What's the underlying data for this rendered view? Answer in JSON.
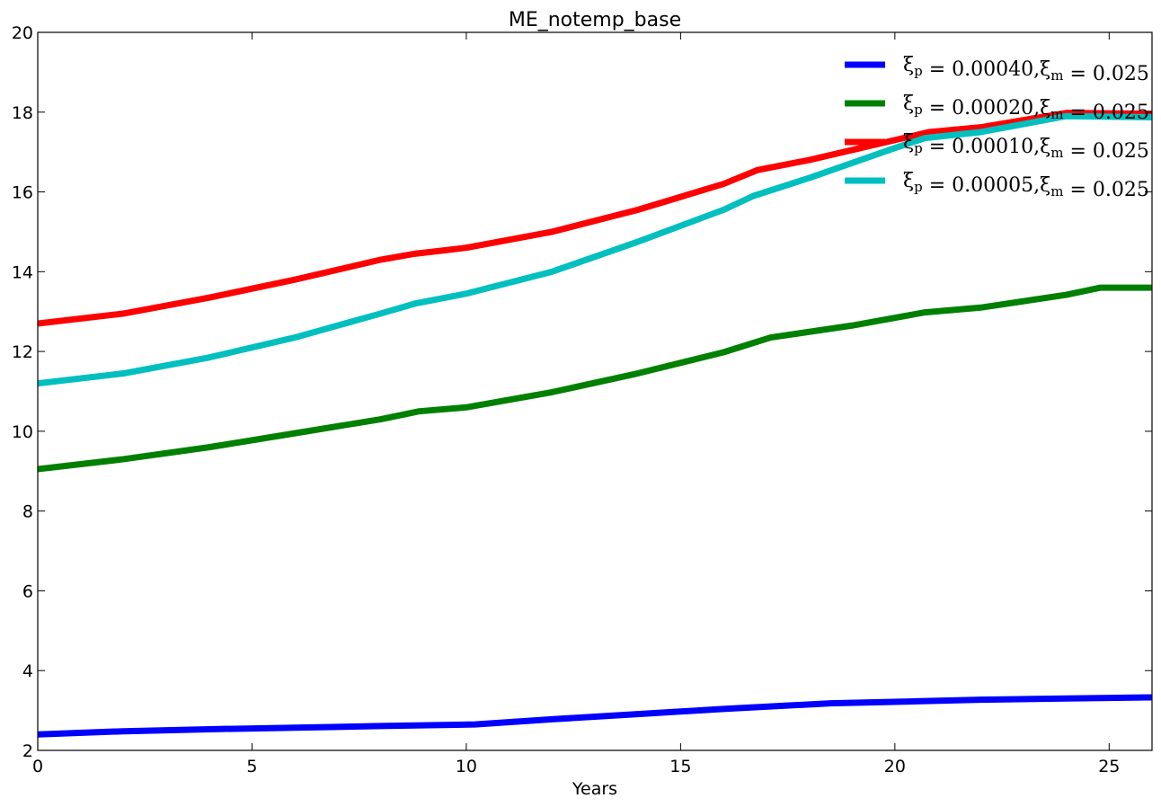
{
  "chart_data": {
    "type": "line",
    "title": "ME_notemp_base",
    "xlabel": "Years",
    "ylabel": "",
    "xlim": [
      0,
      26
    ],
    "ylim": [
      2,
      20
    ],
    "xticks": [
      0,
      5,
      10,
      15,
      20,
      25
    ],
    "yticks": [
      2,
      4,
      6,
      8,
      10,
      12,
      14,
      16,
      18,
      20
    ],
    "grid": false,
    "legend_position": "top-right",
    "series": [
      {
        "name": "ξp = 0.00040,ξm = 0.025",
        "legend": {
          "xi": "ξ",
          "sub1": "p",
          "mid": " = 0.00040,",
          "sub2": "m",
          "tail": " = 0.025"
        },
        "color": "#0000ff",
        "x": [
          0,
          2,
          4,
          6,
          8,
          10.2,
          12,
          14,
          16,
          18.5,
          20.5,
          22,
          24,
          26
        ],
        "y": [
          2.4,
          2.48,
          2.53,
          2.57,
          2.61,
          2.65,
          2.78,
          2.91,
          3.04,
          3.18,
          3.23,
          3.27,
          3.3,
          3.33
        ]
      },
      {
        "name": "ξp = 0.00020,ξm = 0.025",
        "legend": {
          "xi": "ξ",
          "sub1": "p",
          "mid": " = 0.00020,",
          "sub2": "m",
          "tail": " = 0.025"
        },
        "color": "#008000",
        "x": [
          0,
          2,
          4,
          6,
          8,
          8.9,
          10,
          12,
          14,
          16,
          17.1,
          19,
          20.7,
          22,
          24,
          24.8,
          26
        ],
        "y": [
          9.05,
          9.3,
          9.6,
          9.95,
          10.3,
          10.5,
          10.6,
          10.98,
          11.45,
          11.98,
          12.35,
          12.65,
          12.98,
          13.1,
          13.42,
          13.6,
          13.6
        ]
      },
      {
        "name": "ξp = 0.00010,ξm = 0.025",
        "legend": {
          "xi": "ξ",
          "sub1": "p",
          "mid": " = 0.00010,",
          "sub2": "m",
          "tail": " = 0.025"
        },
        "color": "#ff0000",
        "x": [
          0,
          2,
          4,
          6,
          8,
          8.8,
          10,
          12,
          14,
          16,
          16.8,
          18,
          20,
          20.8,
          22,
          24,
          26
        ],
        "y": [
          12.7,
          12.95,
          13.35,
          13.8,
          14.3,
          14.45,
          14.6,
          15.0,
          15.55,
          16.2,
          16.55,
          16.8,
          17.3,
          17.5,
          17.62,
          17.98,
          17.96
        ]
      },
      {
        "name": "ξp = 0.00005,ξm = 0.025",
        "legend": {
          "xi": "ξ",
          "sub1": "p",
          "mid": " = 0.00005,",
          "sub2": "m",
          "tail": " = 0.025"
        },
        "color": "#00bfbf",
        "x": [
          0,
          2,
          4,
          6,
          8,
          8.8,
          10,
          12,
          14,
          16,
          16.7,
          18,
          20,
          20.7,
          22,
          24,
          26
        ],
        "y": [
          11.2,
          11.45,
          11.85,
          12.35,
          12.95,
          13.2,
          13.45,
          14.0,
          14.75,
          15.55,
          15.9,
          16.35,
          17.1,
          17.35,
          17.5,
          17.9,
          17.87
        ]
      }
    ]
  }
}
